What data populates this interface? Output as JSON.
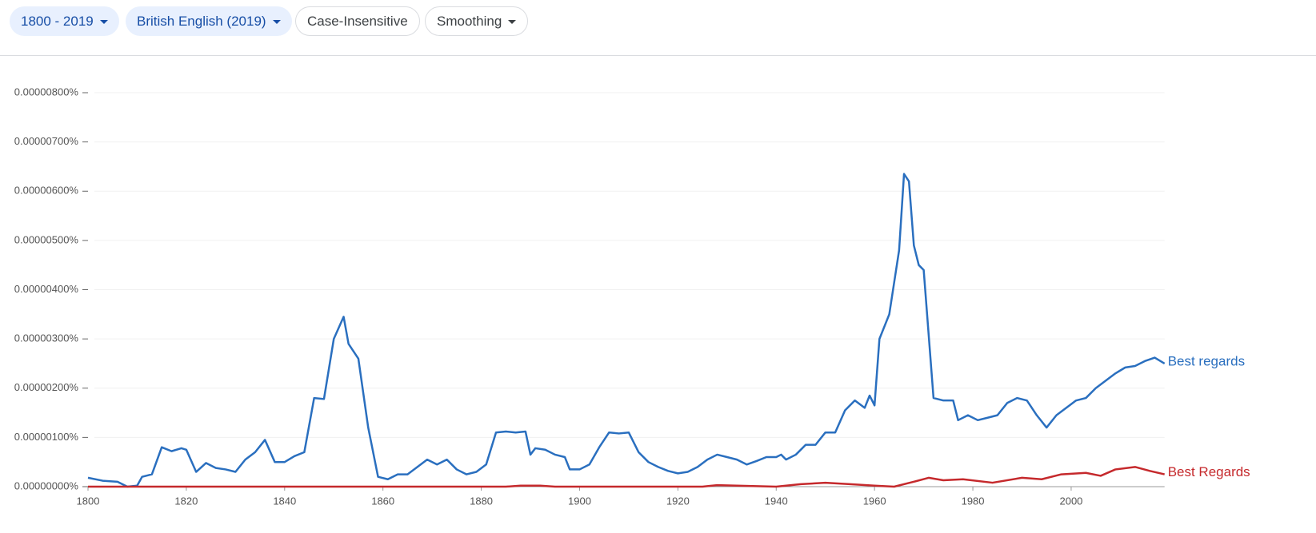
{
  "toolbar": {
    "chips": [
      "1800 - 2019",
      "British English (2019)",
      "Case-Insensitive",
      "Smoothing"
    ]
  },
  "chart_data": {
    "type": "line",
    "xlim": [
      1800,
      2019
    ],
    "xticks": [
      1800,
      1820,
      1840,
      1860,
      1880,
      1900,
      1920,
      1940,
      1960,
      1980,
      2000
    ],
    "ylim": [
      0,
      8e-06
    ],
    "yticks": [
      {
        "value": 0,
        "label": "0.00000000%"
      },
      {
        "value": 1e-06,
        "label": "0.00000100%"
      },
      {
        "value": 2e-06,
        "label": "0.00000200%"
      },
      {
        "value": 3e-06,
        "label": "0.00000300%"
      },
      {
        "value": 4e-06,
        "label": "0.00000400%"
      },
      {
        "value": 5e-06,
        "label": "0.00000500%"
      },
      {
        "value": 6e-06,
        "label": "0.00000600%"
      },
      {
        "value": 7e-06,
        "label": "0.00000700%"
      },
      {
        "value": 8e-06,
        "label": "0.00000800%"
      }
    ],
    "grid": true,
    "series": [
      {
        "name": "Best regards",
        "color": "#2a6fbf",
        "x": [
          1800,
          1803,
          1806,
          1808,
          1810,
          1811,
          1813,
          1815,
          1817,
          1819,
          1820,
          1822,
          1824,
          1826,
          1828,
          1830,
          1832,
          1834,
          1836,
          1838,
          1840,
          1842,
          1844,
          1846,
          1848,
          1850,
          1852,
          1853,
          1855,
          1857,
          1859,
          1861,
          1863,
          1865,
          1867,
          1869,
          1871,
          1873,
          1875,
          1877,
          1879,
          1881,
          1883,
          1885,
          1887,
          1889,
          1890,
          1891,
          1893,
          1895,
          1897,
          1898,
          1900,
          1902,
          1904,
          1906,
          1908,
          1910,
          1912,
          1914,
          1916,
          1918,
          1920,
          1922,
          1924,
          1926,
          1928,
          1930,
          1932,
          1934,
          1936,
          1938,
          1940,
          1941,
          1942,
          1944,
          1946,
          1948,
          1950,
          1952,
          1954,
          1956,
          1958,
          1959,
          1960,
          1961,
          1963,
          1965,
          1966,
          1967,
          1968,
          1969,
          1970,
          1972,
          1974,
          1976,
          1977,
          1979,
          1981,
          1983,
          1985,
          1987,
          1989,
          1991,
          1993,
          1995,
          1997,
          1999,
          2001,
          2003,
          2005,
          2007,
          2009,
          2011,
          2013,
          2015,
          2017,
          2019
        ],
        "values": [
          1.8e-07,
          1.2e-07,
          1e-07,
          0,
          2e-08,
          2e-07,
          2.5e-07,
          8e-07,
          7.2e-07,
          7.8e-07,
          7.5e-07,
          3e-07,
          4.8e-07,
          3.8e-07,
          3.5e-07,
          3e-07,
          5.5e-07,
          7e-07,
          9.5e-07,
          5e-07,
          5e-07,
          6.2e-07,
          7e-07,
          1.8e-06,
          1.78e-06,
          3e-06,
          3.45e-06,
          2.9e-06,
          2.6e-06,
          1.2e-06,
          2e-07,
          1.5e-07,
          2.5e-07,
          2.5e-07,
          4e-07,
          5.5e-07,
          4.5e-07,
          5.5e-07,
          3.5e-07,
          2.5e-07,
          3e-07,
          4.5e-07,
          1.1e-06,
          1.12e-06,
          1.1e-06,
          1.12e-06,
          6.5e-07,
          7.8e-07,
          7.5e-07,
          6.5e-07,
          6e-07,
          3.5e-07,
          3.5e-07,
          4.5e-07,
          8e-07,
          1.1e-06,
          1.08e-06,
          1.1e-06,
          7e-07,
          5e-07,
          4e-07,
          3.2e-07,
          2.7e-07,
          3e-07,
          4e-07,
          5.5e-07,
          6.5e-07,
          6e-07,
          5.5e-07,
          4.5e-07,
          5.2e-07,
          6e-07,
          6e-07,
          6.5e-07,
          5.5e-07,
          6.5e-07,
          8.5e-07,
          8.5e-07,
          1.1e-06,
          1.1e-06,
          1.55e-06,
          1.75e-06,
          1.6e-06,
          1.85e-06,
          1.65e-06,
          3e-06,
          3.5e-06,
          4.8e-06,
          6.35e-06,
          6.2e-06,
          4.9e-06,
          4.5e-06,
          4.4e-06,
          1.8e-06,
          1.75e-06,
          1.75e-06,
          1.35e-06,
          1.45e-06,
          1.35e-06,
          1.4e-06,
          1.45e-06,
          1.7e-06,
          1.8e-06,
          1.75e-06,
          1.45e-06,
          1.2e-06,
          1.45e-06,
          1.6e-06,
          1.75e-06,
          1.8e-06,
          2e-06,
          2.15e-06,
          2.3e-06,
          2.42e-06,
          2.45e-06,
          2.55e-06,
          2.62e-06,
          2.5e-06
        ]
      },
      {
        "name": "Best Regards",
        "color": "#c5292c",
        "x": [
          1800,
          1885,
          1888,
          1892,
          1895,
          1925,
          1928,
          1932,
          1940,
          1945,
          1950,
          1955,
          1960,
          1964,
          1968,
          1971,
          1974,
          1978,
          1984,
          1990,
          1994,
          1998,
          2003,
          2006,
          2009,
          2013,
          2016,
          2019
        ],
        "values": [
          0,
          0,
          2e-08,
          2e-08,
          0,
          0,
          3e-08,
          2e-08,
          0,
          5e-08,
          8e-08,
          5e-08,
          2e-08,
          0,
          1e-07,
          1.8e-07,
          1.3e-07,
          1.5e-07,
          8e-08,
          1.8e-07,
          1.5e-07,
          2.5e-07,
          2.8e-07,
          2.2e-07,
          3.5e-07,
          4e-07,
          3.2e-07,
          2.5e-07
        ]
      }
    ]
  }
}
